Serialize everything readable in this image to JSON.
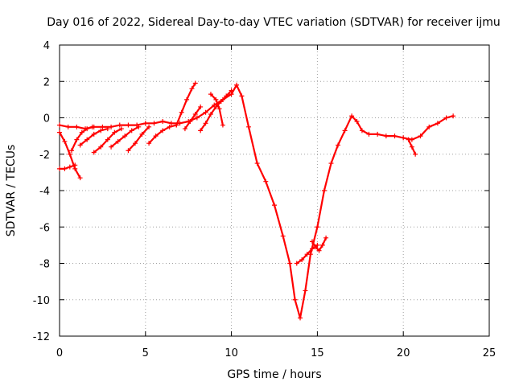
{
  "chart_data": {
    "type": "scatter",
    "title": "Day 016 of 2022, Sidereal Day-to-day VTEC variation (SDTVAR) for receiver ijmu",
    "xlabel": "GPS time / hours",
    "ylabel": "SDTVAR / TECUs",
    "xlim": [
      0,
      25
    ],
    "ylim": [
      -12,
      4
    ],
    "xticks": [
      "0",
      "5",
      "10",
      "15",
      "20",
      "25"
    ],
    "yticks": [
      "-12",
      "-10",
      "-8",
      "-6",
      "-4",
      "-2",
      "0",
      "2",
      "4"
    ],
    "grid": true,
    "marker": "plus",
    "color": "#ff0000",
    "series": [
      {
        "x": [
          0.0,
          0.5,
          1.0,
          1.5,
          2.0,
          2.5,
          3.0,
          3.5,
          4.0,
          4.5,
          5.0,
          5.5,
          6.0,
          6.5,
          7.0,
          7.5,
          8.0,
          8.5,
          9.0,
          9.5,
          10.0,
          10.3,
          10.6,
          11.0,
          11.5,
          12.0,
          12.5,
          13.0,
          13.4,
          13.7,
          14.0,
          14.3,
          14.6,
          15.0,
          15.4,
          15.8,
          16.2,
          16.6,
          17.0,
          17.3,
          17.6,
          18.0,
          18.5,
          19.0,
          19.5,
          20.0,
          20.5,
          21.0,
          21.5,
          22.0,
          22.5,
          22.9
        ],
        "y": [
          -0.4,
          -0.5,
          -0.5,
          -0.6,
          -0.5,
          -0.5,
          -0.5,
          -0.4,
          -0.4,
          -0.4,
          -0.3,
          -0.3,
          -0.2,
          -0.3,
          -0.3,
          -0.2,
          0.0,
          0.3,
          0.7,
          1.0,
          1.3,
          1.8,
          1.2,
          -0.5,
          -2.5,
          -3.5,
          -4.8,
          -6.5,
          -8.0,
          -10.0,
          -11.0,
          -9.5,
          -7.5,
          -6.0,
          -4.0,
          -2.5,
          -1.5,
          -0.7,
          0.1,
          -0.2,
          -0.7,
          -0.9,
          -0.9,
          -1.0,
          -1.0,
          -1.1,
          -1.2,
          -1.0,
          -0.5,
          -0.3,
          0.0,
          0.1
        ]
      },
      {
        "x": [
          0.0,
          0.3,
          0.6,
          0.9,
          1.2
        ],
        "y": [
          -0.8,
          -1.3,
          -2.0,
          -2.8,
          -3.3
        ]
      },
      {
        "x": [
          0.0,
          0.3,
          0.6,
          0.9
        ],
        "y": [
          -2.8,
          -2.8,
          -2.7,
          -2.6
        ]
      },
      {
        "x": [
          0.7,
          1.0,
          1.3,
          1.6,
          1.9
        ],
        "y": [
          -1.8,
          -1.2,
          -0.8,
          -0.6,
          -0.5
        ]
      },
      {
        "x": [
          1.2,
          1.6,
          2.0,
          2.4,
          2.8
        ],
        "y": [
          -1.5,
          -1.2,
          -0.9,
          -0.7,
          -0.6
        ]
      },
      {
        "x": [
          2.0,
          2.4,
          2.8,
          3.2,
          3.6
        ],
        "y": [
          -1.9,
          -1.6,
          -1.2,
          -0.8,
          -0.6
        ]
      },
      {
        "x": [
          3.0,
          3.4,
          3.8,
          4.2,
          4.6
        ],
        "y": [
          -1.6,
          -1.3,
          -1.0,
          -0.7,
          -0.5
        ]
      },
      {
        "x": [
          4.0,
          4.4,
          4.8,
          5.2
        ],
        "y": [
          -1.8,
          -1.4,
          -0.9,
          -0.5
        ]
      },
      {
        "x": [
          5.2,
          5.6,
          6.0,
          6.4,
          6.8
        ],
        "y": [
          -1.4,
          -1.0,
          -0.7,
          -0.5,
          -0.4
        ]
      },
      {
        "x": [
          6.8,
          7.1,
          7.4,
          7.7,
          7.9
        ],
        "y": [
          -0.4,
          0.3,
          1.0,
          1.6,
          1.9
        ]
      },
      {
        "x": [
          7.3,
          7.6,
          7.9,
          8.2
        ],
        "y": [
          -0.6,
          -0.2,
          0.2,
          0.6
        ]
      },
      {
        "x": [
          8.2,
          8.5,
          8.8,
          9.1,
          9.4,
          9.7,
          10.0
        ],
        "y": [
          -0.7,
          -0.3,
          0.2,
          0.6,
          0.9,
          1.2,
          1.5
        ]
      },
      {
        "x": [
          8.8,
          9.1,
          9.3,
          9.5
        ],
        "y": [
          1.3,
          1.0,
          0.5,
          -0.4
        ]
      },
      {
        "x": [
          13.8,
          14.1,
          14.4,
          14.7,
          15.0
        ],
        "y": [
          -8.0,
          -7.8,
          -7.5,
          -7.2,
          -7.0
        ]
      },
      {
        "x": [
          14.7,
          14.9,
          15.1,
          15.3,
          15.5
        ],
        "y": [
          -6.8,
          -7.1,
          -7.3,
          -7.0,
          -6.6
        ]
      },
      {
        "x": [
          20.3,
          20.5,
          20.7
        ],
        "y": [
          -1.2,
          -1.6,
          -2.0
        ]
      }
    ]
  }
}
